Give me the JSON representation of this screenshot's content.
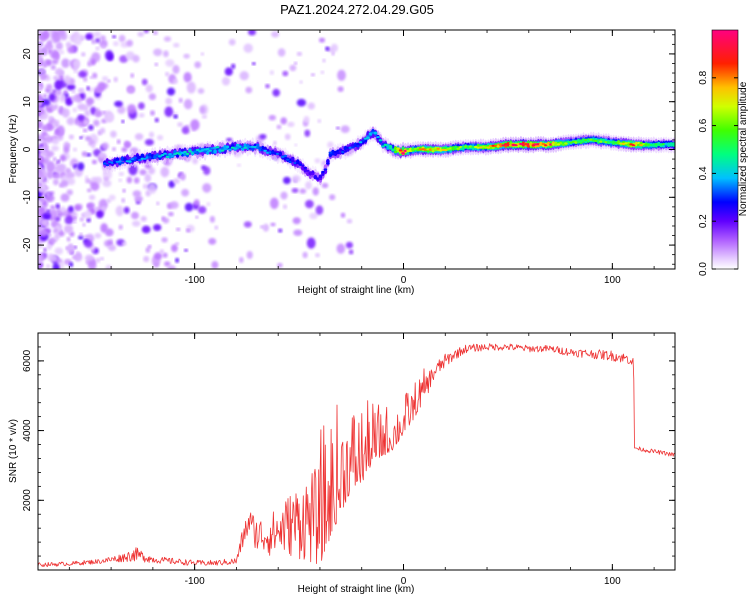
{
  "title": "PAZ1.2024.272.04.29.G05",
  "chart_data": [
    {
      "type": "heatmap",
      "xlabel": "Height of straight line (km)",
      "ylabel": "Frequency (Hz)",
      "xlim": [
        -175,
        130
      ],
      "ylim": [
        -25,
        25
      ],
      "xticks": [
        -100,
        0,
        100
      ],
      "xtick_labels": [
        "-100",
        "0",
        "100"
      ],
      "yticks": [
        -20,
        -10,
        0,
        10,
        20
      ],
      "ytick_labels": [
        "-20",
        "-10",
        "0",
        "10",
        "20"
      ],
      "colorbar": {
        "label": "Normalized spectral amplitude",
        "range": [
          0,
          1
        ],
        "ticks": [
          0.0,
          0.2,
          0.4,
          0.6,
          0.8
        ],
        "tick_labels": [
          "0.0",
          "0.2",
          "0.4",
          "0.6",
          "0.8"
        ],
        "colormap": [
          "#ffffff",
          "#d9b3ff",
          "#8000ff",
          "#0000ff",
          "#00ffff",
          "#00ff00",
          "#ffff00",
          "#ff8000",
          "#ff0000",
          "#ff0080"
        ]
      },
      "ridge": {
        "x": [
          -143,
          -130,
          -120,
          -110,
          -100,
          -90,
          -80,
          -70,
          -60,
          -50,
          -45,
          -40,
          -37,
          -35,
          -30,
          -25,
          -20,
          -15,
          -13,
          -10,
          -5,
          0,
          5,
          10,
          20,
          30,
          40,
          50,
          60,
          70,
          80,
          90,
          100,
          110,
          120,
          130
        ],
        "y": [
          -3,
          -2,
          -1.5,
          -1,
          -0.5,
          0,
          0.5,
          0.5,
          -1,
          -3,
          -5,
          -6,
          -4,
          -1,
          -0.5,
          0.5,
          1.5,
          3.5,
          3,
          1,
          0,
          -0.5,
          0,
          0,
          0,
          0.5,
          0.5,
          1,
          1,
          1,
          1.5,
          2,
          1.5,
          1,
          1,
          1
        ],
        "amplitude": [
          0.3,
          0.35,
          0.35,
          0.4,
          0.4,
          0.4,
          0.4,
          0.35,
          0.3,
          0.3,
          0.25,
          0.25,
          0.25,
          0.3,
          0.3,
          0.3,
          0.35,
          0.4,
          0.4,
          0.4,
          0.5,
          0.95,
          0.6,
          0.8,
          0.7,
          0.55,
          0.7,
          0.9,
          0.95,
          0.9,
          0.55,
          0.6,
          0.55,
          0.8,
          0.5,
          0.5
        ]
      }
    },
    {
      "type": "line",
      "xlabel": "Height of straight line (km)",
      "ylabel": "SNR (10 * v/v)",
      "xlim": [
        -175,
        130
      ],
      "ylim": [
        0,
        6800
      ],
      "xticks": [
        -100,
        0,
        100
      ],
      "xtick_labels": [
        "-100",
        "0",
        "100"
      ],
      "yticks": [
        2000,
        4000,
        6000
      ],
      "ytick_labels": [
        "2000",
        "4000",
        "6000"
      ],
      "series": [
        {
          "color": "#ee3333",
          "x": [
            -175,
            -160,
            -145,
            -135,
            -128,
            -120,
            -110,
            -100,
            -90,
            -80,
            -77,
            -74,
            -70,
            -65,
            -60,
            -55,
            -50,
            -45,
            -40,
            -35,
            -30,
            -25,
            -20,
            -15,
            -10,
            -5,
            0,
            5,
            10,
            15,
            20,
            25,
            30,
            40,
            50,
            60,
            70,
            80,
            90,
            100,
            108,
            110,
            111,
            115,
            120,
            130
          ],
          "y": [
            150,
            180,
            250,
            350,
            450,
            300,
            250,
            200,
            200,
            250,
            900,
            1400,
            1000,
            1000,
            1100,
            1300,
            1400,
            1500,
            1500,
            2200,
            2800,
            3200,
            3300,
            3700,
            3800,
            3900,
            4300,
            4700,
            5200,
            5700,
            6000,
            6200,
            6350,
            6400,
            6400,
            6350,
            6350,
            6250,
            6200,
            6150,
            6050,
            6000,
            3500,
            3450,
            3400,
            3300
          ],
          "noise": [
            60,
            60,
            70,
            120,
            200,
            100,
            90,
            80,
            80,
            100,
            300,
            400,
            500,
            600,
            700,
            900,
            1100,
            1300,
            1500,
            1400,
            1300,
            1000,
            900,
            700,
            600,
            500,
            450,
            400,
            350,
            250,
            200,
            150,
            120,
            100,
            100,
            100,
            100,
            120,
            130,
            150,
            150,
            150,
            60,
            60,
            60,
            60
          ]
        }
      ]
    }
  ]
}
